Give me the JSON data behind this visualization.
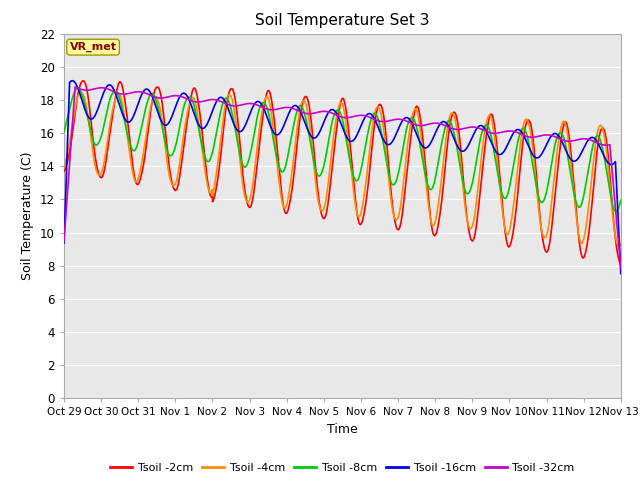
{
  "title": "Soil Temperature Set 3",
  "xlabel": "Time",
  "ylabel": "Soil Temperature (C)",
  "ylim": [
    0,
    22
  ],
  "yticks": [
    0,
    2,
    4,
    6,
    8,
    10,
    12,
    14,
    16,
    18,
    20,
    22
  ],
  "xtick_labels": [
    "Oct 29",
    "Oct 30",
    "Oct 31",
    "Nov 1",
    "Nov 2",
    "Nov 3",
    "Nov 4",
    "Nov 5",
    "Nov 6",
    "Nov 7",
    "Nov 8",
    "Nov 9",
    "Nov 10",
    "Nov 11",
    "Nov 12",
    "Nov 13"
  ],
  "xtick_positions": [
    0,
    1,
    2,
    3,
    4,
    5,
    6,
    7,
    8,
    9,
    10,
    11,
    12,
    13,
    14,
    15
  ],
  "lines": [
    {
      "label": "Tsoil -2cm",
      "color": "#FF0000"
    },
    {
      "label": "Tsoil -4cm",
      "color": "#FF8C00"
    },
    {
      "label": "Tsoil -8cm",
      "color": "#00CC00"
    },
    {
      "label": "Tsoil -16cm",
      "color": "#0000EE"
    },
    {
      "label": "Tsoil -32cm",
      "color": "#CC00CC"
    }
  ],
  "annotation": "VR_met",
  "plot_bg_color": "#E8E8E8",
  "grid_color": "#FFFFFF",
  "linewidth": 1.2
}
